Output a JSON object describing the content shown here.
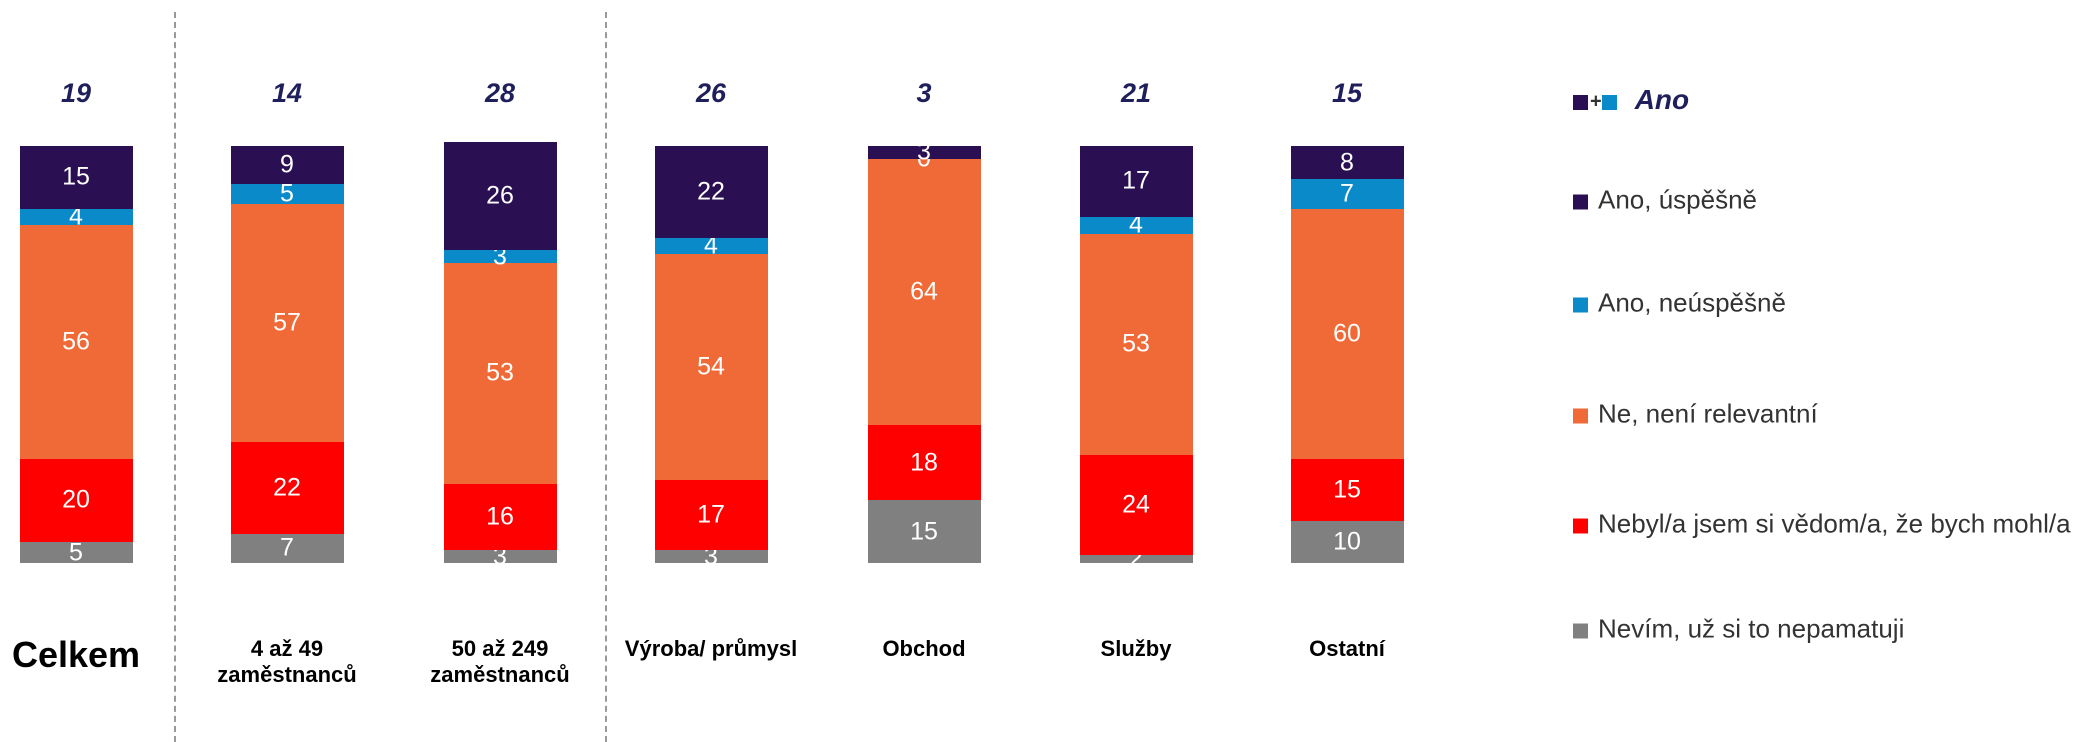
{
  "chart_data": {
    "type": "stacked-bar",
    "categories": [
      "Celkem",
      "4 až 49 zaměstnanců",
      "50 až 249 zaměstnanců",
      "Výroba/ průmysl",
      "Obchod",
      "Služby",
      "Ostatní"
    ],
    "series": [
      {
        "name": "Ano, úspěšně",
        "color": "#2a0f52",
        "values": [
          15,
          9,
          26,
          22,
          3,
          17,
          8
        ]
      },
      {
        "name": "Ano, neúspěšně",
        "color": "#0a8ac8",
        "values": [
          4,
          5,
          3,
          4,
          0,
          4,
          7
        ]
      },
      {
        "name": "Ne, není relevantní",
        "color": "#ef6a37",
        "values": [
          56,
          57,
          53,
          54,
          64,
          53,
          60
        ]
      },
      {
        "name": "Nebyl/a jsem si vědom/a, že bych mohl/a",
        "color": "#ff0000",
        "values": [
          20,
          22,
          16,
          17,
          18,
          24,
          15
        ]
      },
      {
        "name": "Nevím, už si to nepamatuji",
        "color": "#808080",
        "values": [
          5,
          7,
          3,
          3,
          15,
          2,
          10
        ]
      }
    ],
    "totals": {
      "name": "Ano",
      "values": [
        19,
        14,
        28,
        26,
        3,
        21,
        15
      ]
    },
    "ylim": [
      0,
      100
    ]
  }
}
